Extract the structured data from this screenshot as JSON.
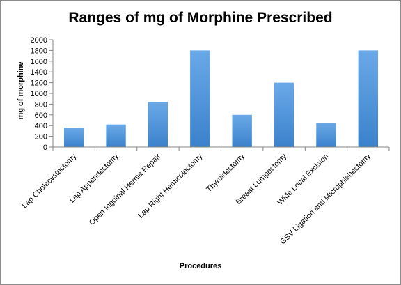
{
  "chart_data": {
    "type": "bar",
    "title": "Ranges of mg of Morphine Prescribed",
    "xlabel": "Procedures",
    "ylabel": "mg  of morphine",
    "categories": [
      "Lap Cholecystectomy",
      "Lap Appendectomy",
      "Open Inguinal Hernia Repair",
      "Lap Right Hemicolectomy",
      "Thyroidectomy",
      "Breast Lumpectomy",
      "Wide Local Excision",
      "GSV Ligation and Microphlebectomy"
    ],
    "values": [
      360,
      420,
      840,
      1800,
      600,
      1200,
      450,
      1800
    ],
    "ylim": [
      0,
      2000
    ],
    "yticks": [
      0,
      200,
      400,
      600,
      800,
      1000,
      1200,
      1400,
      1600,
      1800,
      2000
    ],
    "grid": false,
    "legend": "none",
    "bar_color": "#4a8fd4"
  }
}
